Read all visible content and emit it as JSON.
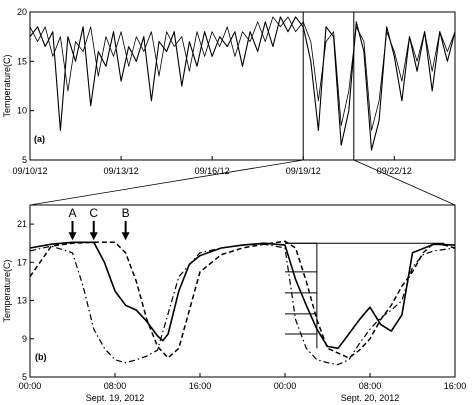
{
  "chart_data": [
    {
      "type": "line",
      "panel_label": "(a)",
      "ylabel": "Temperature(C)",
      "ylim": [
        5,
        20
      ],
      "yticks": [
        5,
        10,
        15,
        20
      ],
      "xlim": [
        "09/10/12",
        "09/24/12"
      ],
      "xticks": [
        "09/10/12",
        "09/13/12",
        "09/16/12",
        "09/19/12",
        "09/22/12"
      ],
      "zoom_window": [
        "09/19/12",
        "09/20/12 16:00"
      ],
      "series": [
        {
          "x": [
            "09/10/12",
            "09/10/12 06:00",
            "09/10/12 12:00",
            "09/10/12 18:00",
            "09/11/12",
            "09/11/12 06:00",
            "09/11/12 12:00",
            "09/11/12 18:00",
            "09/12/12",
            "09/12/12 06:00",
            "09/12/12 12:00",
            "09/12/12 18:00",
            "09/13/12",
            "09/13/12 06:00",
            "09/13/12 12:00",
            "09/13/12 18:00",
            "09/14/12",
            "09/14/12 06:00",
            "09/14/12 12:00",
            "09/14/12 18:00",
            "09/15/12",
            "09/15/12 06:00",
            "09/15/12 12:00",
            "09/15/12 18:00",
            "09/16/12",
            "09/16/12 06:00",
            "09/16/12 12:00",
            "09/16/12 18:00",
            "09/17/12",
            "09/17/12 06:00",
            "09/17/12 12:00",
            "09/17/12 18:00",
            "09/18/12",
            "09/18/12 06:00",
            "09/18/12 12:00",
            "09/18/12 18:00",
            "09/19/12",
            "09/19/12 06:00",
            "09/19/12 12:00",
            "09/19/12 18:00",
            "09/20/12",
            "09/20/12 06:00",
            "09/20/12 12:00",
            "09/20/12 18:00",
            "09/21/12",
            "09/21/12 06:00",
            "09/21/12 12:00",
            "09/21/12 18:00",
            "09/22/12",
            "09/22/12 06:00",
            "09/22/12 12:00",
            "09/22/12 18:00",
            "09/23/12",
            "09/23/12 06:00",
            "09/23/12 12:00",
            "09/23/12 18:00",
            "09/24/12"
          ],
          "values": [
            17.5,
            18.5,
            16.5,
            18.0,
            8.0,
            17.5,
            15.0,
            18.5,
            10.5,
            16.0,
            14.5,
            18.0,
            13.0,
            16.5,
            15.0,
            17.5,
            11.0,
            17.0,
            16.0,
            18.0,
            12.5,
            17.0,
            14.5,
            18.0,
            15.5,
            17.5,
            16.5,
            18.0,
            14.5,
            18.0,
            16.0,
            19.0,
            16.5,
            19.5,
            18.0,
            19.5,
            18.5,
            15.0,
            8.0,
            18.5,
            17.5,
            6.5,
            10.0,
            19.0,
            16.0,
            6.0,
            9.0,
            18.5,
            15.5,
            11.0,
            17.5,
            14.0,
            18.0,
            12.0,
            18.0,
            15.0,
            18.0
          ]
        },
        {
          "x": [
            "09/10/12",
            "09/10/12 06:00",
            "09/10/12 12:00",
            "09/10/12 18:00",
            "09/11/12",
            "09/11/12 06:00",
            "09/11/12 12:00",
            "09/11/12 18:00",
            "09/12/12",
            "09/12/12 06:00",
            "09/12/12 12:00",
            "09/12/12 18:00",
            "09/13/12",
            "09/13/12 06:00",
            "09/13/12 12:00",
            "09/13/12 18:00",
            "09/14/12",
            "09/14/12 06:00",
            "09/14/12 12:00",
            "09/14/12 18:00",
            "09/15/12",
            "09/15/12 06:00",
            "09/15/12 12:00",
            "09/15/12 18:00",
            "09/16/12",
            "09/16/12 06:00",
            "09/16/12 12:00",
            "09/16/12 18:00",
            "09/17/12",
            "09/17/12 06:00",
            "09/17/12 12:00",
            "09/17/12 18:00",
            "09/18/12",
            "09/18/12 06:00",
            "09/18/12 12:00",
            "09/18/12 18:00",
            "09/19/12",
            "09/19/12 06:00",
            "09/19/12 12:00",
            "09/19/12 18:00",
            "09/20/12",
            "09/20/12 06:00",
            "09/20/12 12:00",
            "09/20/12 18:00",
            "09/21/12",
            "09/21/12 06:00",
            "09/21/12 12:00",
            "09/21/12 18:00",
            "09/22/12",
            "09/22/12 06:00",
            "09/22/12 12:00",
            "09/22/12 18:00",
            "09/23/12",
            "09/23/12 06:00",
            "09/23/12 12:00",
            "09/23/12 18:00",
            "09/24/12"
          ],
          "values": [
            18.5,
            17.0,
            18.5,
            15.5,
            17.5,
            12.0,
            17.0,
            16.0,
            18.5,
            13.5,
            17.5,
            15.5,
            18.0,
            14.5,
            17.5,
            16.0,
            18.0,
            13.5,
            18.0,
            16.5,
            17.5,
            14.0,
            18.0,
            15.5,
            18.0,
            16.5,
            18.5,
            15.5,
            18.0,
            17.0,
            19.0,
            17.0,
            19.5,
            18.5,
            19.5,
            18.0,
            19.0,
            17.0,
            11.0,
            17.0,
            18.0,
            8.5,
            12.0,
            18.5,
            17.0,
            8.0,
            11.0,
            18.0,
            16.0,
            13.0,
            17.5,
            15.0,
            18.0,
            14.0,
            18.0,
            16.0,
            18.0
          ]
        }
      ]
    },
    {
      "type": "line",
      "panel_label": "(b)",
      "ylabel": "Temperature(C)",
      "ylim": [
        5,
        23
      ],
      "yticks": [
        5,
        9,
        13,
        17,
        21
      ],
      "xlim": [
        "2012-09-19 00:00",
        "2012-09-20 16:00"
      ],
      "xticks": [
        "00:00",
        "08:00",
        "16:00",
        "00:00",
        "08:00",
        "16:00"
      ],
      "date_labels": [
        "Sept. 19, 2012",
        "Sept. 20, 2012"
      ],
      "annotations": [
        {
          "label": "A",
          "x": "2012-09-19 04:00",
          "y": 19.1
        },
        {
          "label": "C",
          "x": "2012-09-19 06:00",
          "y": 19.1
        },
        {
          "label": "B",
          "x": "2012-09-19 09:00",
          "y": 19.1
        }
      ],
      "series": [
        {
          "style": "solid",
          "x": [
            "2012-09-19 00:00",
            "2012-09-19 02:00",
            "2012-09-19 04:00",
            "2012-09-19 06:00",
            "2012-09-19 07:00",
            "2012-09-19 07:30",
            "2012-09-19 08:00",
            "2012-09-19 09:00",
            "2012-09-19 10:00",
            "2012-09-19 11:00",
            "2012-09-19 12:00",
            "2012-09-19 12:30",
            "2012-09-19 13:00",
            "2012-09-19 14:00",
            "2012-09-19 15:00",
            "2012-09-19 16:00",
            "2012-09-19 18:00",
            "2012-09-19 20:00",
            "2012-09-19 22:00",
            "2012-09-20 00:00",
            "2012-09-20 01:00",
            "2012-09-20 02:00",
            "2012-09-20 03:00",
            "2012-09-20 04:00",
            "2012-09-20 05:00",
            "2012-09-20 06:00",
            "2012-09-20 07:00",
            "2012-09-20 08:00",
            "2012-09-20 09:00",
            "2012-09-20 10:00",
            "2012-09-20 11:00",
            "2012-09-20 12:00",
            "2012-09-20 14:00",
            "2012-09-20 16:00"
          ],
          "values": [
            18.5,
            18.9,
            19.1,
            19.1,
            17.0,
            15.5,
            14.0,
            12.5,
            12.0,
            10.8,
            9.3,
            8.8,
            9.5,
            14.0,
            16.8,
            17.7,
            18.5,
            18.8,
            19.0,
            18.8,
            15.2,
            12.5,
            10.0,
            8.2,
            8.0,
            9.5,
            11.0,
            12.3,
            10.5,
            9.8,
            11.5,
            18.0,
            18.9,
            18.8
          ]
        },
        {
          "style": "dashed",
          "x": [
            "2012-09-19 00:00",
            "2012-09-19 02:00",
            "2012-09-19 04:00",
            "2012-09-19 06:00",
            "2012-09-19 08:00",
            "2012-09-19 09:00",
            "2012-09-19 10:00",
            "2012-09-19 11:00",
            "2012-09-19 12:00",
            "2012-09-19 13:00",
            "2012-09-19 14:00",
            "2012-09-19 15:00",
            "2012-09-19 16:00",
            "2012-09-19 18:00",
            "2012-09-19 20:00",
            "2012-09-19 22:00",
            "2012-09-20 00:00",
            "2012-09-20 01:00",
            "2012-09-20 02:00",
            "2012-09-20 03:00",
            "2012-09-20 04:00",
            "2012-09-20 05:00",
            "2012-09-20 06:00",
            "2012-09-20 07:00",
            "2012-09-20 08:00",
            "2012-09-20 09:00",
            "2012-09-20 10:00",
            "2012-09-20 11:00",
            "2012-09-20 12:00",
            "2012-09-20 13:00",
            "2012-09-20 14:00",
            "2012-09-20 15:00",
            "2012-09-20 16:00"
          ],
          "values": [
            15.5,
            18.7,
            19.0,
            19.1,
            19.1,
            18.0,
            15.0,
            11.0,
            8.2,
            7.0,
            8.0,
            12.0,
            16.0,
            17.8,
            18.5,
            18.9,
            19.2,
            18.5,
            15.0,
            11.0,
            8.0,
            7.5,
            7.0,
            7.8,
            9.0,
            11.0,
            12.5,
            14.5,
            16.0,
            18.0,
            19.0,
            18.8,
            18.5
          ]
        },
        {
          "style": "dash-dot",
          "x": [
            "2012-09-19 00:00",
            "2012-09-19 02:00",
            "2012-09-19 04:00",
            "2012-09-19 05:00",
            "2012-09-19 06:00",
            "2012-09-19 07:00",
            "2012-09-19 08:00",
            "2012-09-19 09:00",
            "2012-09-19 10:00",
            "2012-09-19 11:00",
            "2012-09-19 12:00",
            "2012-09-19 14:00",
            "2012-09-19 16:00",
            "2012-09-19 18:00",
            "2012-09-19 20:00",
            "2012-09-19 22:00",
            "2012-09-20 00:00",
            "2012-09-20 01:00",
            "2012-09-20 02:00",
            "2012-09-20 03:00",
            "2012-09-20 04:00",
            "2012-09-20 05:00",
            "2012-09-20 06:00",
            "2012-09-20 07:00",
            "2012-09-20 08:00",
            "2012-09-20 09:00",
            "2012-09-20 10:00",
            "2012-09-20 11:00",
            "2012-09-20 12:00",
            "2012-09-20 13:00",
            "2012-09-20 14:00",
            "2012-09-20 16:00"
          ],
          "values": [
            18.2,
            18.7,
            18.0,
            14.5,
            10.0,
            8.0,
            6.8,
            6.5,
            6.8,
            7.2,
            7.8,
            15.5,
            18.0,
            18.5,
            18.8,
            18.9,
            18.5,
            11.0,
            8.0,
            6.8,
            6.5,
            6.3,
            6.8,
            8.5,
            10.0,
            11.2,
            12.0,
            13.0,
            16.5,
            17.8,
            18.2,
            18.5
          ]
        }
      ],
      "reference_line_y": 19.0,
      "reference_ladder": {
        "x_range": [
          "2012-09-20 00:00",
          "2012-09-20 03:00"
        ],
        "levels": [
          19.0,
          16.0,
          13.8,
          11.6,
          9.5
        ]
      }
    }
  ]
}
